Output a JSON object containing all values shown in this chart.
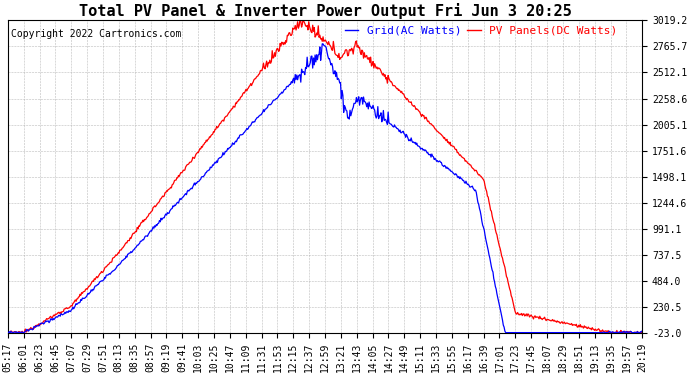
{
  "title": "Total PV Panel & Inverter Power Output Fri Jun 3 20:25",
  "copyright": "Copyright 2022 Cartronics.com",
  "legend_grid": "Grid(AC Watts)",
  "legend_pv": "PV Panels(DC Watts)",
  "yticks": [
    -23.0,
    230.5,
    484.0,
    737.5,
    991.1,
    1244.6,
    1498.1,
    1751.6,
    2005.1,
    2258.6,
    2512.1,
    2765.7,
    3019.2
  ],
  "ymin": -23.0,
  "ymax": 3019.2,
  "grid_color": "#0000FF",
  "pv_color": "#FF0000",
  "background_color": "#FFFFFF",
  "title_fontsize": 11,
  "tick_fontsize": 7,
  "copyright_fontsize": 7,
  "legend_fontsize": 8,
  "x_tick_labels": [
    "05:17",
    "06:01",
    "06:23",
    "06:45",
    "07:07",
    "07:29",
    "07:51",
    "08:13",
    "08:35",
    "08:57",
    "09:19",
    "09:41",
    "10:03",
    "10:25",
    "10:47",
    "11:09",
    "11:31",
    "11:53",
    "12:15",
    "12:37",
    "12:59",
    "13:21",
    "13:43",
    "14:05",
    "14:27",
    "14:49",
    "15:11",
    "15:33",
    "15:55",
    "16:17",
    "16:39",
    "17:01",
    "17:23",
    "17:45",
    "18:07",
    "18:29",
    "18:51",
    "19:13",
    "19:35",
    "19:57",
    "20:19"
  ]
}
